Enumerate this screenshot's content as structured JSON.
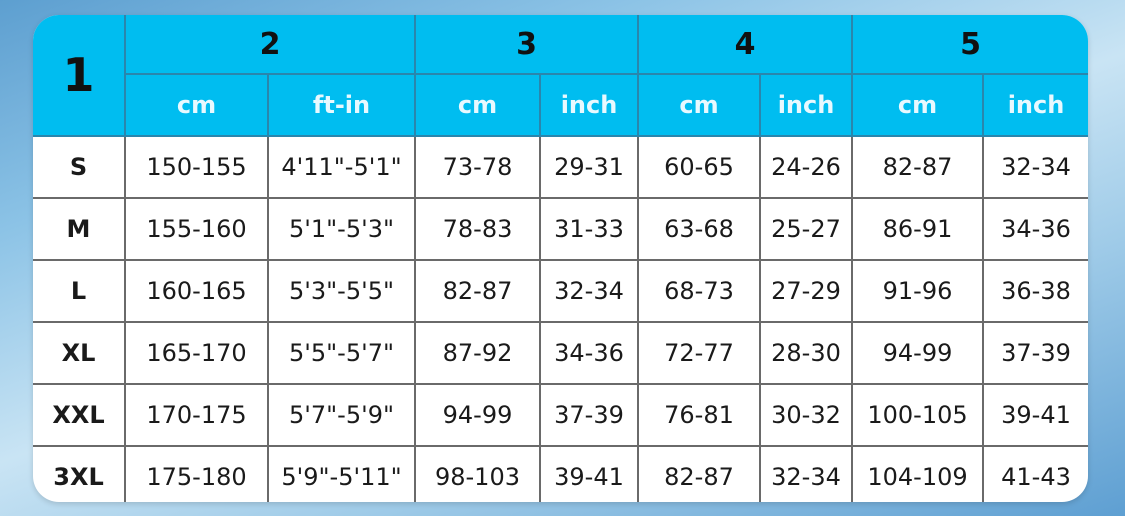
{
  "header": {
    "corner": "1",
    "groups": [
      "2",
      "3",
      "4",
      "5"
    ],
    "units": [
      "cm",
      "ft-in",
      "cm",
      "inch",
      "cm",
      "inch",
      "cm",
      "inch"
    ]
  },
  "rows": [
    {
      "size": "S",
      "cells": [
        "150-155",
        "4'11\"-5'1\"",
        "73-78",
        "29-31",
        "60-65",
        "24-26",
        "82-87",
        "32-34"
      ]
    },
    {
      "size": "M",
      "cells": [
        "155-160",
        "5'1\"-5'3\"",
        "78-83",
        "31-33",
        "63-68",
        "25-27",
        "86-91",
        "34-36"
      ]
    },
    {
      "size": "L",
      "cells": [
        "160-165",
        "5'3\"-5'5\"",
        "82-87",
        "32-34",
        "68-73",
        "27-29",
        "91-96",
        "36-38"
      ]
    },
    {
      "size": "XL",
      "cells": [
        "165-170",
        "5'5\"-5'7\"",
        "87-92",
        "34-36",
        "72-77",
        "28-30",
        "94-99",
        "37-39"
      ]
    },
    {
      "size": "XXL",
      "cells": [
        "170-175",
        "5'7\"-5'9\"",
        "94-99",
        "37-39",
        "76-81",
        "30-32",
        "100-105",
        "39-41"
      ]
    },
    {
      "size": "3XL",
      "cells": [
        "175-180",
        "5'9\"-5'11\"",
        "98-103",
        "39-41",
        "82-87",
        "32-34",
        "104-109",
        "41-43"
      ]
    }
  ],
  "colors": {
    "header": "#00bdf0",
    "body": "#ffffff"
  }
}
